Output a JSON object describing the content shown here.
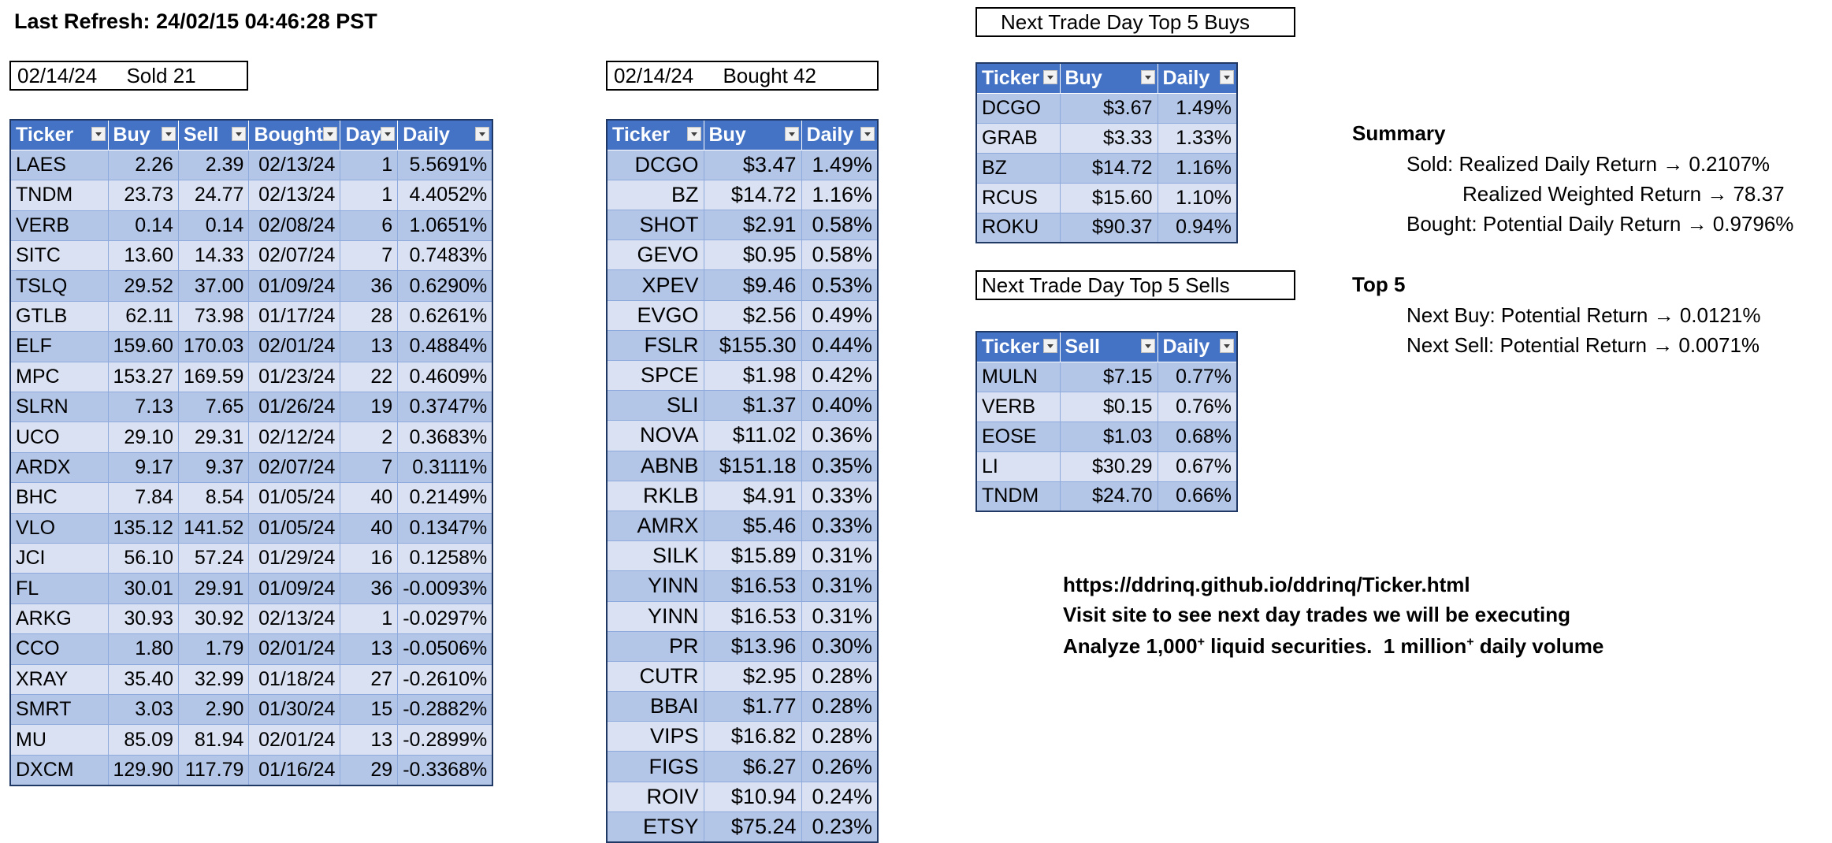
{
  "header": {
    "last_refresh": "Last Refresh: 24/02/15 04:46:28 PST"
  },
  "sold_box": {
    "date": "02/14/24",
    "label": "Sold 21"
  },
  "bought_box": {
    "date": "02/14/24",
    "label": "Bought 42"
  },
  "top_buys_box": {
    "label": "Next Trade Day Top 5 Buys"
  },
  "top_sells_box": {
    "label": "Next Trade Day Top 5 Sells"
  },
  "sold_table": {
    "columns": [
      "Ticker",
      "Buy",
      "Sell",
      "Bought",
      "Days",
      "Daily"
    ],
    "rows": [
      [
        "LAES",
        "2.26",
        "2.39",
        "02/13/24",
        "1",
        "5.5691%"
      ],
      [
        "TNDM",
        "23.73",
        "24.77",
        "02/13/24",
        "1",
        "4.4052%"
      ],
      [
        "VERB",
        "0.14",
        "0.14",
        "02/08/24",
        "6",
        "1.0651%"
      ],
      [
        "SITC",
        "13.60",
        "14.33",
        "02/07/24",
        "7",
        "0.7483%"
      ],
      [
        "TSLQ",
        "29.52",
        "37.00",
        "01/09/24",
        "36",
        "0.6290%"
      ],
      [
        "GTLB",
        "62.11",
        "73.98",
        "01/17/24",
        "28",
        "0.6261%"
      ],
      [
        "ELF",
        "159.60",
        "170.03",
        "02/01/24",
        "13",
        "0.4884%"
      ],
      [
        "MPC",
        "153.27",
        "169.59",
        "01/23/24",
        "22",
        "0.4609%"
      ],
      [
        "SLRN",
        "7.13",
        "7.65",
        "01/26/24",
        "19",
        "0.3747%"
      ],
      [
        "UCO",
        "29.10",
        "29.31",
        "02/12/24",
        "2",
        "0.3683%"
      ],
      [
        "ARDX",
        "9.17",
        "9.37",
        "02/07/24",
        "7",
        "0.3111%"
      ],
      [
        "BHC",
        "7.84",
        "8.54",
        "01/05/24",
        "40",
        "0.2149%"
      ],
      [
        "VLO",
        "135.12",
        "141.52",
        "01/05/24",
        "40",
        "0.1347%"
      ],
      [
        "JCI",
        "56.10",
        "57.24",
        "01/29/24",
        "16",
        "0.1258%"
      ],
      [
        "FL",
        "30.01",
        "29.91",
        "01/09/24",
        "36",
        "-0.0093%"
      ],
      [
        "ARKG",
        "30.93",
        "30.92",
        "02/13/24",
        "1",
        "-0.0297%"
      ],
      [
        "CCO",
        "1.80",
        "1.79",
        "02/01/24",
        "13",
        "-0.0506%"
      ],
      [
        "XRAY",
        "35.40",
        "32.99",
        "01/18/24",
        "27",
        "-0.2610%"
      ],
      [
        "SMRT",
        "3.03",
        "2.90",
        "01/30/24",
        "15",
        "-0.2882%"
      ],
      [
        "MU",
        "85.09",
        "81.94",
        "02/01/24",
        "13",
        "-0.2899%"
      ],
      [
        "DXCM",
        "129.90",
        "117.79",
        "01/16/24",
        "29",
        "-0.3368%"
      ]
    ]
  },
  "bought_table": {
    "columns": [
      "Ticker",
      "Buy",
      "Daily"
    ],
    "rows": [
      [
        "DCGO",
        "$3.47",
        "1.49%"
      ],
      [
        "BZ",
        "$14.72",
        "1.16%"
      ],
      [
        "SHOT",
        "$2.91",
        "0.58%"
      ],
      [
        "GEVO",
        "$0.95",
        "0.58%"
      ],
      [
        "XPEV",
        "$9.46",
        "0.53%"
      ],
      [
        "EVGO",
        "$2.56",
        "0.49%"
      ],
      [
        "FSLR",
        "$155.30",
        "0.44%"
      ],
      [
        "SPCE",
        "$1.98",
        "0.42%"
      ],
      [
        "SLI",
        "$1.37",
        "0.40%"
      ],
      [
        "NOVA",
        "$11.02",
        "0.36%"
      ],
      [
        "ABNB",
        "$151.18",
        "0.35%"
      ],
      [
        "RKLB",
        "$4.91",
        "0.33%"
      ],
      [
        "AMRX",
        "$5.46",
        "0.33%"
      ],
      [
        "SILK",
        "$15.89",
        "0.31%"
      ],
      [
        "YINN",
        "$16.53",
        "0.31%"
      ],
      [
        "YINN",
        "$16.53",
        "0.31%"
      ],
      [
        "PR",
        "$13.96",
        "0.30%"
      ],
      [
        "CUTR",
        "$2.95",
        "0.28%"
      ],
      [
        "BBAI",
        "$1.77",
        "0.28%"
      ],
      [
        "VIPS",
        "$16.82",
        "0.28%"
      ],
      [
        "FIGS",
        "$6.27",
        "0.26%"
      ],
      [
        "ROIV",
        "$10.94",
        "0.24%"
      ],
      [
        "ETSY",
        "$75.24",
        "0.23%"
      ]
    ]
  },
  "top_buys_table": {
    "columns": [
      "Ticker",
      "Buy",
      "Daily"
    ],
    "rows": [
      [
        "DCGO",
        "$3.67",
        "1.49%"
      ],
      [
        "GRAB",
        "$3.33",
        "1.33%"
      ],
      [
        "BZ",
        "$14.72",
        "1.16%"
      ],
      [
        "RCUS",
        "$15.60",
        "1.10%"
      ],
      [
        "ROKU",
        "$90.37",
        "0.94%"
      ]
    ]
  },
  "top_sells_table": {
    "columns": [
      "Ticker",
      "Sell",
      "Daily"
    ],
    "rows": [
      [
        "MULN",
        "$7.15",
        "0.77%"
      ],
      [
        "VERB",
        "$0.15",
        "0.76%"
      ],
      [
        "EOSE",
        "$1.03",
        "0.68%"
      ],
      [
        "LI",
        "$30.29",
        "0.67%"
      ],
      [
        "TNDM",
        "$24.70",
        "0.66%"
      ]
    ]
  },
  "summary": {
    "title": "Summary",
    "sold_line": "Sold: Realized Daily Return → 0.2107%",
    "weighted_line": "Realized Weighted Return → 78.37",
    "bought_line": "Bought: Potential Daily Return → 0.9796%"
  },
  "top5": {
    "title": "Top 5",
    "next_buy_line": "Next Buy: Potential Return → 0.0121%",
    "next_sell_line": "Next Sell: Potential Return → 0.0071%"
  },
  "promo": {
    "url": "https://ddrinq.github.io/ddrinq/Ticker.html",
    "visit": "Visit site to see next day trades we will be executing",
    "analyze_prefix": "Analyze 1,000",
    "plus": "+",
    "analyze_middle": " liquid securities.  1 million",
    "analyze_suffix": " daily volume"
  },
  "colors": {
    "header_fill": "#4472c4",
    "row_odd": "#b4c6e7",
    "row_even": "#d9e1f2"
  }
}
